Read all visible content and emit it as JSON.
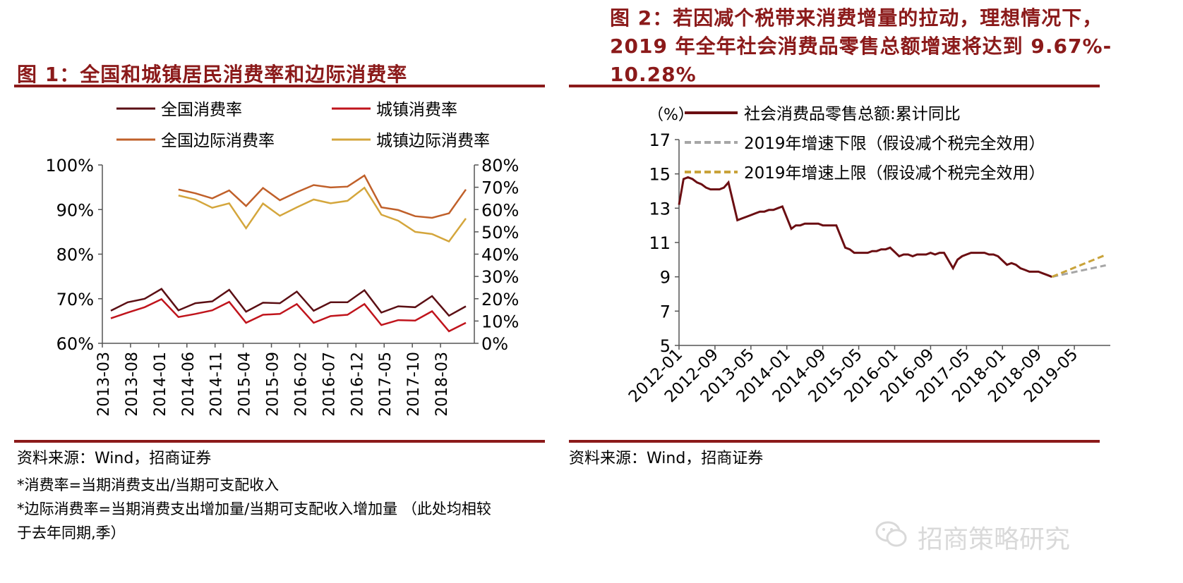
{
  "panel1": {
    "title": "图 1：全国和城镇居民消费率和边际消费率",
    "source": "资料来源：Wind，招商证券",
    "note1": "*消费率=当期消费支出/当期可支配收入",
    "note2": "*边际消费率=当期消费支出增加量/当期可支配收入增加量 （此处均相较",
    "note3": "于去年同期,季）"
  },
  "panel2": {
    "title_line1": "图 2：若因减个税带来消费增量的拉动，理想情况下，",
    "title_line2": "2019 年全年社会消费品零售总额增速将达到 9.67%-",
    "title_line3": "10.28%",
    "source": "资料来源：Wind，招商证券"
  },
  "watermark": "招商策略研究",
  "chart_data": [
    {
      "type": "line",
      "left_axis_ticks": [
        "100%",
        "90%",
        "80%",
        "70%",
        "60%"
      ],
      "right_axis_ticks": [
        "80%",
        "70%",
        "60%",
        "50%",
        "40%",
        "30%",
        "20%",
        "10%",
        "0%"
      ],
      "ylim_left": [
        60,
        100
      ],
      "ylim_right": [
        0,
        80
      ],
      "x_tick_labels": [
        "2013-03",
        "2013-08",
        "2014-01",
        "2014-06",
        "2014-11",
        "2015-04",
        "2015-09",
        "2016-02",
        "2016-07",
        "2016-12",
        "2017-05",
        "2017-10",
        "2018-03"
      ],
      "legend_position": "top",
      "series": [
        {
          "name": "全国消费率",
          "axis": "left",
          "color": "#5B0F14",
          "values": [
            67.3,
            69.2,
            70.0,
            72.2,
            67.4,
            69.0,
            69.4,
            72.0,
            67.1,
            69.1,
            69.0,
            71.6,
            67.3,
            69.2,
            69.2,
            71.9,
            66.9,
            68.3,
            68.1,
            70.6,
            66.2,
            68.3
          ]
        },
        {
          "name": "城镇消费率",
          "axis": "left",
          "color": "#C0141C",
          "values": [
            65.6,
            66.9,
            68.1,
            69.9,
            65.9,
            66.6,
            67.4,
            69.3,
            64.6,
            66.4,
            66.6,
            68.8,
            64.6,
            66.1,
            66.4,
            68.8,
            64.1,
            65.2,
            65.1,
            67.2,
            62.7,
            64.6
          ]
        },
        {
          "name": "全国边际消费率",
          "axis": "right",
          "color": "#C0602A",
          "values": [
            null,
            null,
            null,
            null,
            69.0,
            67.3,
            65.0,
            68.6,
            61.6,
            69.7,
            64.2,
            67.8,
            71.0,
            69.9,
            70.3,
            75.3,
            61.0,
            59.8,
            57.0,
            56.3,
            58.3,
            69.0
          ]
        },
        {
          "name": "城镇边际消费率",
          "axis": "right",
          "color": "#D4A63C",
          "values": [
            null,
            null,
            null,
            null,
            66.3,
            64.5,
            60.8,
            62.8,
            51.6,
            62.7,
            57.2,
            61.0,
            64.5,
            62.8,
            63.9,
            69.8,
            57.7,
            55.0,
            50.0,
            49.0,
            45.7,
            56.0
          ]
        }
      ]
    },
    {
      "type": "line",
      "ylabel": "（%）",
      "y_ticks": [
        "17",
        "15",
        "13",
        "11",
        "9",
        "7",
        "5"
      ],
      "ylim": [
        5,
        17
      ],
      "x_tick_labels": [
        "2012-01",
        "2012-09",
        "2013-05",
        "2014-01",
        "2014-09",
        "2015-05",
        "2016-01",
        "2016-09",
        "2017-05",
        "2018-01",
        "2018-09",
        "2019-05"
      ],
      "legend_position": "top",
      "series": [
        {
          "name": "社会消费品零售总额:累计同比",
          "color": "#6B0E12",
          "style": "solid",
          "x": [
            "2012-01",
            "2012-02",
            "2012-03",
            "2012-04",
            "2012-05",
            "2012-06",
            "2012-07",
            "2012-08",
            "2012-09",
            "2012-10",
            "2012-11",
            "2012-12",
            "2013-02",
            "2013-03",
            "2013-04",
            "2013-05",
            "2013-06",
            "2013-07",
            "2013-08",
            "2013-09",
            "2013-10",
            "2013-11",
            "2013-12",
            "2014-02",
            "2014-03",
            "2014-04",
            "2014-05",
            "2014-06",
            "2014-07",
            "2014-08",
            "2014-09",
            "2014-10",
            "2014-11",
            "2014-12",
            "2015-02",
            "2015-03",
            "2015-04",
            "2015-05",
            "2015-06",
            "2015-07",
            "2015-08",
            "2015-09",
            "2015-10",
            "2015-11",
            "2015-12",
            "2016-02",
            "2016-03",
            "2016-04",
            "2016-05",
            "2016-06",
            "2016-07",
            "2016-08",
            "2016-09",
            "2016-10",
            "2016-11",
            "2016-12",
            "2017-02",
            "2017-03",
            "2017-04",
            "2017-05",
            "2017-06",
            "2017-07",
            "2017-08",
            "2017-09",
            "2017-10",
            "2017-11",
            "2017-12",
            "2018-02",
            "2018-03",
            "2018-04",
            "2018-05",
            "2018-06",
            "2018-07",
            "2018-08",
            "2018-09",
            "2018-10",
            "2018-11",
            "2018-12"
          ],
          "values": [
            13.2,
            14.7,
            14.8,
            14.7,
            14.5,
            14.4,
            14.2,
            14.1,
            14.1,
            14.1,
            14.2,
            14.5,
            12.3,
            12.4,
            12.5,
            12.6,
            12.7,
            12.8,
            12.8,
            12.9,
            12.9,
            13.0,
            13.1,
            11.8,
            12.0,
            12.0,
            12.1,
            12.1,
            12.1,
            12.1,
            12.0,
            12.0,
            12.0,
            12.0,
            10.7,
            10.6,
            10.4,
            10.4,
            10.4,
            10.4,
            10.5,
            10.5,
            10.6,
            10.6,
            10.7,
            10.2,
            10.3,
            10.3,
            10.2,
            10.3,
            10.3,
            10.3,
            10.4,
            10.3,
            10.4,
            10.4,
            9.5,
            10.0,
            10.2,
            10.3,
            10.4,
            10.4,
            10.4,
            10.4,
            10.3,
            10.3,
            10.2,
            9.7,
            9.8,
            9.7,
            9.5,
            9.4,
            9.3,
            9.3,
            9.3,
            9.2,
            9.1,
            9.0
          ]
        },
        {
          "name": "2019年增速下限（假设减个税完全效用）",
          "color": "#A6A6A6",
          "style": "dashed",
          "x": [
            "2018-12",
            "2019-12"
          ],
          "values": [
            9.0,
            9.67
          ]
        },
        {
          "name": "2019年增速上限（假设减个税完全效用）",
          "color": "#C9A33A",
          "style": "dashed",
          "x": [
            "2018-12",
            "2019-12"
          ],
          "values": [
            9.0,
            10.28
          ]
        }
      ]
    }
  ]
}
